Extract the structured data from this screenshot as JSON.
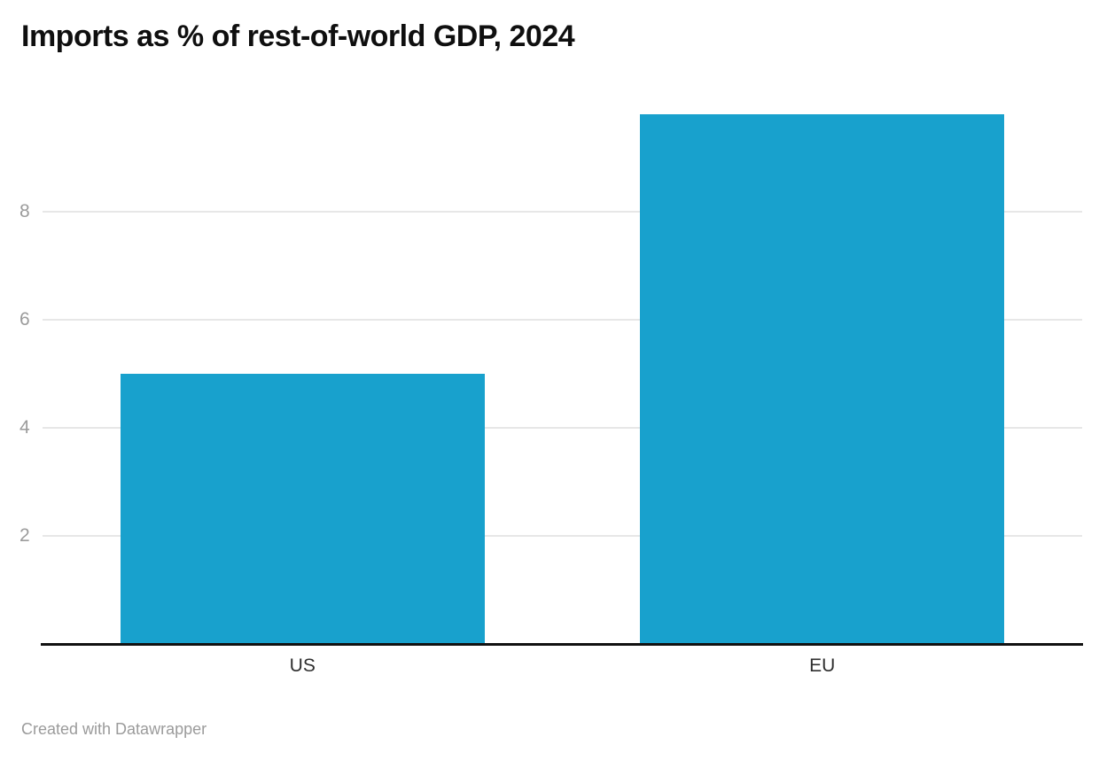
{
  "chart_data": {
    "type": "bar",
    "title": "Imports as % of rest-of-world GDP, 2024",
    "categories": [
      "US",
      "EU"
    ],
    "values": [
      5.0,
      9.8
    ],
    "xlabel": "",
    "ylabel": "",
    "ylim": [
      0,
      10
    ],
    "yticks": [
      2,
      4,
      6,
      8
    ],
    "grid": true,
    "legend": "none",
    "bar_color": "#18a1cd",
    "gridline_color": "#e7e7e7",
    "axis_line_color": "#111111",
    "tick_label_color": "#9b9b9b",
    "category_label_color": "#2e2e2e"
  },
  "footer": {
    "credit": "Created with Datawrapper"
  }
}
